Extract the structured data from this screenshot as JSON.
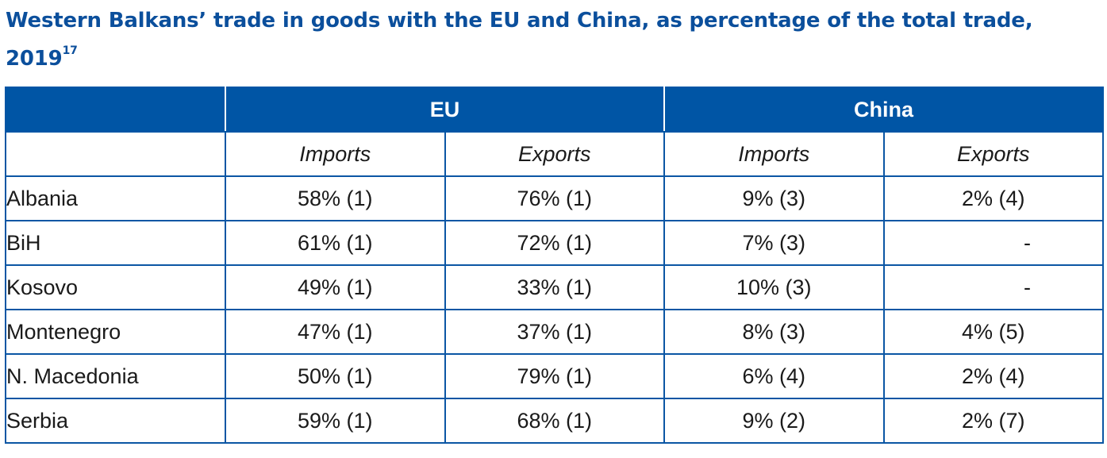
{
  "title": {
    "text": "Western Balkans’ trade in goods with the EU and China, as percentage of the total trade, 2019",
    "footnote": "17"
  },
  "table": {
    "corner": "",
    "groups": [
      "EU",
      "China"
    ],
    "subheaders": [
      "Imports",
      "Exports",
      "Imports",
      "Exports"
    ],
    "rows": [
      {
        "country": "Albania",
        "eu_imports": "58% (1)",
        "eu_exports": "76% (1)",
        "china_imports": "9% (3)",
        "china_exports": "2% (4)"
      },
      {
        "country": "BiH",
        "eu_imports": "61% (1)",
        "eu_exports": "72% (1)",
        "china_imports": "7% (3)",
        "china_exports": "-"
      },
      {
        "country": "Kosovo",
        "eu_imports": "49% (1)",
        "eu_exports": "33% (1)",
        "china_imports": "10% (3)",
        "china_exports": "-"
      },
      {
        "country": "Montenegro",
        "eu_imports": "47% (1)",
        "eu_exports": "37% (1)",
        "china_imports": "8% (3)",
        "china_exports": "4% (5)"
      },
      {
        "country": "N. Macedonia",
        "eu_imports": "50% (1)",
        "eu_exports": "79% (1)",
        "china_imports": "6% (4)",
        "china_exports": "2% (4)"
      },
      {
        "country": "Serbia",
        "eu_imports": "59% (1)",
        "eu_exports": "68% (1)",
        "china_imports": "9% (2)",
        "china_exports": "2% (7)"
      }
    ]
  },
  "colors": {
    "header_bg": "#0055a5",
    "title": "#0b4f9c",
    "grid": "#0b56a4"
  }
}
